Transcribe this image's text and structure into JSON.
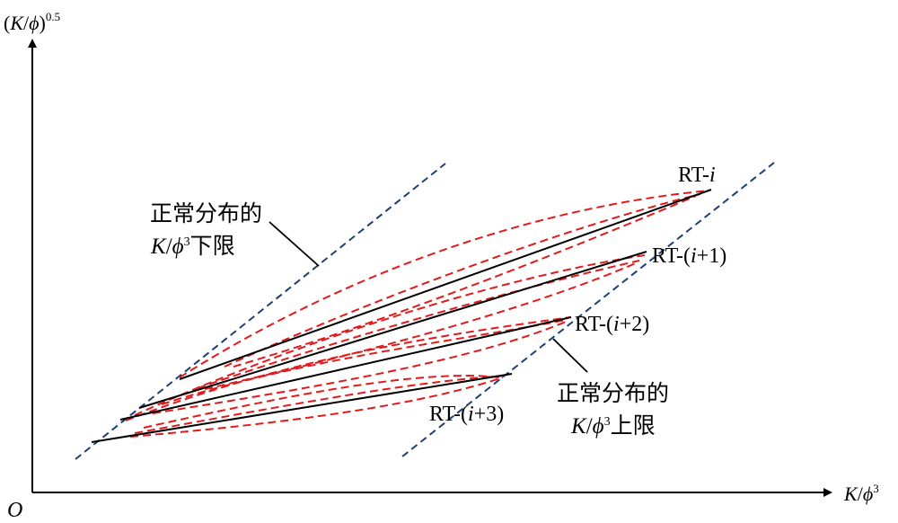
{
  "axes": {
    "x_label": "K/ϕ³",
    "y_label": "(K/ϕ)^0.5",
    "origin_label": "O"
  },
  "bounds": {
    "lower": {
      "line1": "正常分布的",
      "line2": "K/ϕ³下限"
    },
    "upper": {
      "line1": "正常分布的",
      "line2": "K/ϕ³上限"
    }
  },
  "series": [
    {
      "name": "RT-i"
    },
    {
      "name": "RT-(i+1)"
    },
    {
      "name": "RT-(i+2)"
    },
    {
      "name": "RT-(i+3)"
    }
  ],
  "colors": {
    "axis": "#000000",
    "bound_line": "#1f3f73",
    "trend_line": "#000000",
    "envelope": "#e31a1c"
  }
}
